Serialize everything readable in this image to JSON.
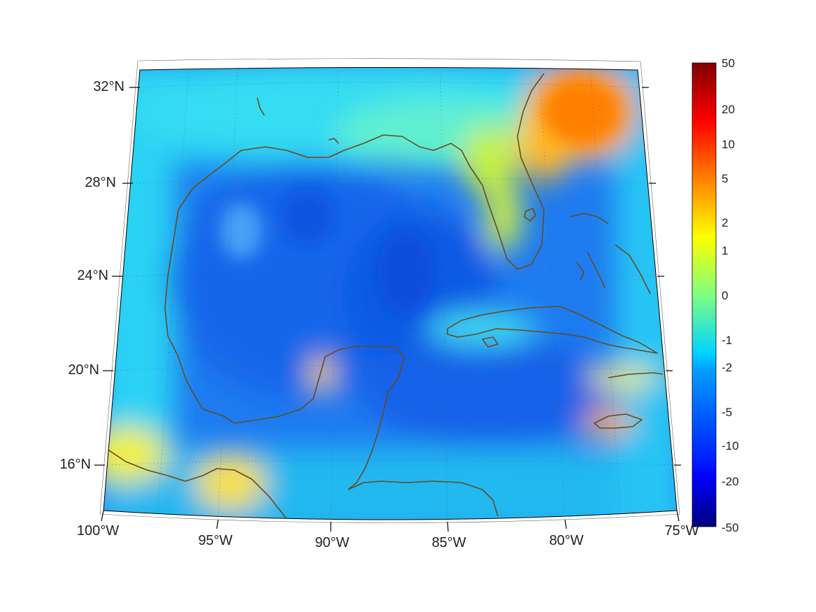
{
  "map": {
    "projection": "conic",
    "lat_labels": [
      "32°N",
      "28°N",
      "24°N",
      "20°N",
      "16°N"
    ],
    "lon_labels": [
      "100°W",
      "95°W",
      "90°W",
      "85°W",
      "80°W",
      "75°W"
    ],
    "coastline_color": "#6b4a1e",
    "grid": "dotted"
  },
  "colorbar": {
    "colormap": "jet",
    "tick_labels": [
      "50",
      "20",
      "10",
      "5",
      "2",
      "1",
      "0",
      "-1",
      "-2",
      "-5",
      "-10",
      "-20",
      "-50"
    ],
    "max_color": "#7f0000",
    "min_color": "#00007f"
  }
}
